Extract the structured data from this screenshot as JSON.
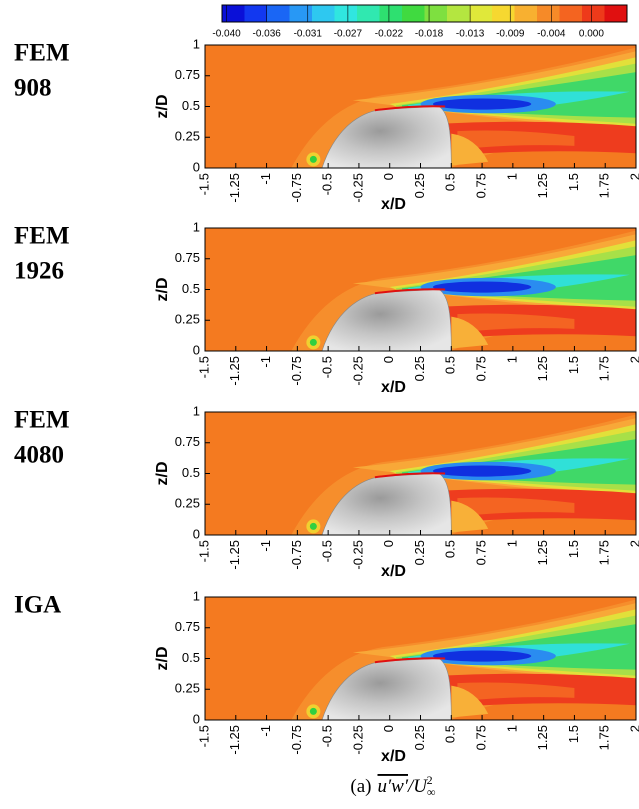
{
  "colorbar": {
    "lim": [
      -0.0405,
      0.0039
    ],
    "colors": [
      "#0a10d8",
      "#1238f0",
      "#1a66f5",
      "#2898f5",
      "#2ec8f0",
      "#30e6e0",
      "#30e8b0",
      "#2ee070",
      "#40da40",
      "#7ee040",
      "#b4e640",
      "#e0e83a",
      "#f6d830",
      "#f8b030",
      "#f68a28",
      "#f46420",
      "#ee3a1a",
      "#e01010"
    ],
    "ticks": [
      {
        "value": -0.04,
        "label": "-0.040"
      },
      {
        "value": -0.0356,
        "label": "-0.036"
      },
      {
        "value": -0.0311,
        "label": "-0.031"
      },
      {
        "value": -0.0267,
        "label": "-0.027"
      },
      {
        "value": -0.0222,
        "label": "-0.022"
      },
      {
        "value": -0.0178,
        "label": "-0.018"
      },
      {
        "value": -0.0133,
        "label": "-0.013"
      },
      {
        "value": -0.0089,
        "label": "-0.009"
      },
      {
        "value": -0.0044,
        "label": "-0.004"
      },
      {
        "value": 0,
        "label": "0.000"
      }
    ]
  },
  "chart_data": [
    {
      "type": "contour",
      "title_lines": [
        "FEM",
        "908"
      ],
      "x_label": "x/D",
      "y_label": "z/D",
      "xlim": [
        -1.5,
        2
      ],
      "ylim": [
        0,
        1
      ],
      "xticks": [
        -1.5,
        -1.25,
        -1,
        -0.75,
        -0.5,
        -0.25,
        0,
        0.25,
        0.5,
        0.75,
        1,
        1.25,
        1.5,
        1.75,
        2
      ],
      "yticks": [
        0,
        0.25,
        0.5,
        0.75,
        1
      ]
    },
    {
      "type": "contour",
      "title_lines": [
        "FEM",
        "1926"
      ],
      "x_label": "x/D",
      "y_label": "z/D",
      "xlim": [
        -1.5,
        2
      ],
      "ylim": [
        0,
        1
      ],
      "xticks": [
        -1.5,
        -1.25,
        -1,
        -0.75,
        -0.5,
        -0.25,
        0,
        0.25,
        0.5,
        0.75,
        1,
        1.25,
        1.5,
        1.75,
        2
      ],
      "yticks": [
        0,
        0.25,
        0.5,
        0.75,
        1
      ]
    },
    {
      "type": "contour",
      "title_lines": [
        "FEM",
        "4080"
      ],
      "x_label": "x/D",
      "y_label": "z/D",
      "xlim": [
        -1.5,
        2
      ],
      "ylim": [
        0,
        1
      ],
      "xticks": [
        -1.5,
        -1.25,
        -1,
        -0.75,
        -0.5,
        -0.25,
        0,
        0.25,
        0.5,
        0.75,
        1,
        1.25,
        1.5,
        1.75,
        2
      ],
      "yticks": [
        0,
        0.25,
        0.5,
        0.75,
        1
      ]
    },
    {
      "type": "contour",
      "title_lines": [
        "IGA"
      ],
      "x_label": "x/D",
      "y_label": "z/D",
      "xlim": [
        -1.5,
        2
      ],
      "ylim": [
        0,
        1
      ],
      "xticks": [
        -1.5,
        -1.25,
        -1,
        -0.75,
        -0.5,
        -0.25,
        0,
        0.25,
        0.5,
        0.75,
        1,
        1.25,
        1.5,
        1.75,
        2
      ],
      "yticks": [
        0,
        0.25,
        0.5,
        0.75,
        1
      ]
    }
  ],
  "caption": {
    "label": "(a)",
    "quantity": "u′w′",
    "divisor": "U",
    "sub": "∞",
    "sup": "2"
  }
}
